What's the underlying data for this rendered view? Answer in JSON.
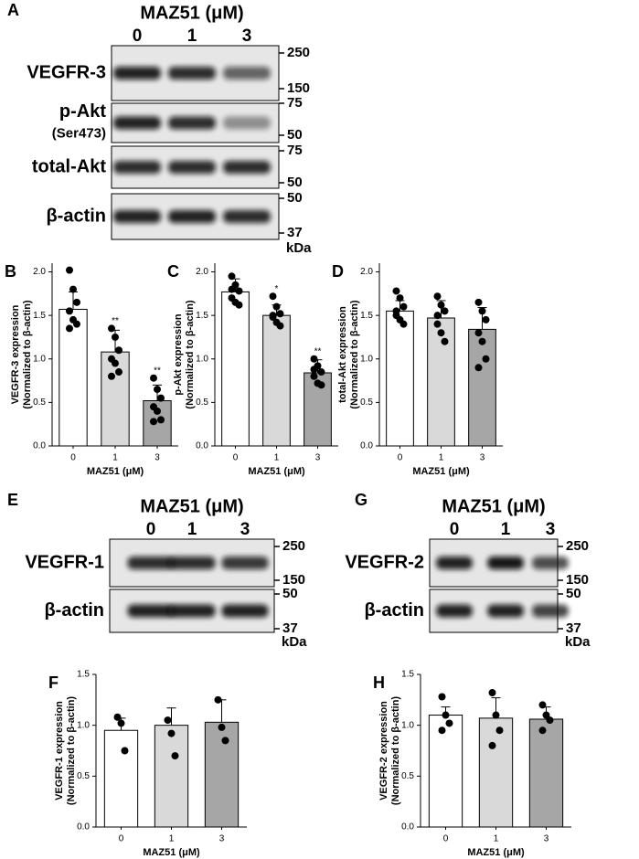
{
  "blots": [
    {
      "panel": "A",
      "title": "MAZ51 (μM)",
      "lanes": [
        "0",
        "1",
        "3"
      ],
      "unit": "kDa",
      "rows": [
        {
          "label": [
            "VEGFR-3"
          ],
          "markers": [
            "250",
            "150"
          ]
        },
        {
          "label": [
            "p-Akt",
            "(Ser473)"
          ],
          "markers": [
            "75",
            "50"
          ]
        },
        {
          "label": [
            "total-Akt"
          ],
          "markers": [
            "75",
            "50"
          ]
        },
        {
          "label": [
            "β-actin"
          ],
          "markers": [
            "50",
            "37"
          ]
        }
      ]
    },
    {
      "panel": "E",
      "title": "MAZ51 (μM)",
      "lanes": [
        "0",
        "1",
        "3"
      ],
      "unit": "kDa",
      "rows": [
        {
          "label": [
            "VEGFR-1"
          ],
          "markers": [
            "250",
            "150"
          ]
        },
        {
          "label": [
            "β-actin"
          ],
          "markers": [
            "50",
            "37"
          ]
        }
      ]
    },
    {
      "panel": "G",
      "title": "MAZ51 (μM)",
      "lanes": [
        "0",
        "1",
        "3"
      ],
      "unit": "kDa",
      "rows": [
        {
          "label": [
            "VEGFR-2"
          ],
          "markers": [
            "250",
            "150"
          ]
        },
        {
          "label": [
            "β-actin"
          ],
          "markers": [
            "50",
            "37"
          ]
        }
      ]
    }
  ],
  "chart_data": [
    {
      "type": "bar",
      "panel": "B",
      "ylabel": [
        "VEGFR-3 expression",
        "(Normalized to β-actin)"
      ],
      "xlabel": "MAZ51 (μM)",
      "categories": [
        "0",
        "1",
        "3"
      ],
      "values": [
        1.57,
        1.08,
        0.52
      ],
      "errors": [
        0.2,
        0.25,
        0.18
      ],
      "annotations": [
        null,
        "**",
        "**"
      ],
      "colors": [
        "#ffffff",
        "#d9d9d9",
        "#a6a6a6"
      ],
      "points": [
        [
          2.02,
          1.8,
          1.65,
          1.55,
          1.45,
          1.4,
          1.35
        ],
        [
          1.35,
          1.25,
          1.1,
          1.0,
          0.95,
          0.85,
          0.8
        ],
        [
          0.78,
          0.65,
          0.55,
          0.45,
          0.4,
          0.3,
          0.28
        ]
      ],
      "ylim": [
        0,
        2.1
      ],
      "yticks": [
        {
          "value": 0,
          "label": "0.0"
        },
        {
          "value": 0.5,
          "label": "0.5"
        },
        {
          "value": 1,
          "label": "1.0"
        },
        {
          "value": 1.5,
          "label": "1.5"
        },
        {
          "value": 2,
          "label": "2.0"
        }
      ]
    },
    {
      "type": "bar",
      "panel": "C",
      "ylabel": [
        "p-Akt expression",
        "(Normalized to β-actin)"
      ],
      "xlabel": "MAZ51 (μM)",
      "categories": [
        "0",
        "1",
        "3"
      ],
      "values": [
        1.77,
        1.5,
        0.84
      ],
      "errors": [
        0.15,
        0.12,
        0.15
      ],
      "annotations": [
        null,
        "*",
        "**"
      ],
      "colors": [
        "#ffffff",
        "#d9d9d9",
        "#a6a6a6"
      ],
      "points": [
        [
          1.95,
          1.85,
          1.78,
          1.7,
          1.65,
          1.62,
          1.8
        ],
        [
          1.72,
          1.6,
          1.52,
          1.48,
          1.42,
          1.38,
          1.5
        ],
        [
          1.0,
          0.92,
          0.85,
          0.8,
          0.72,
          0.7,
          0.88
        ]
      ],
      "ylim": [
        0,
        2.1
      ],
      "yticks": [
        {
          "value": 0,
          "label": "0.0"
        },
        {
          "value": 0.5,
          "label": "0.5"
        },
        {
          "value": 1,
          "label": "1.0"
        },
        {
          "value": 1.5,
          "label": "1.5"
        },
        {
          "value": 2,
          "label": "2.0"
        }
      ]
    },
    {
      "type": "bar",
      "panel": "D",
      "ylabel": [
        "total-Akt expression",
        "(Normalized to β-actin)"
      ],
      "xlabel": "MAZ51 (μM)",
      "categories": [
        "0",
        "1",
        "3"
      ],
      "values": [
        1.55,
        1.47,
        1.34
      ],
      "errors": [
        0.12,
        0.2,
        0.25
      ],
      "annotations": [
        null,
        null,
        null
      ],
      "colors": [
        "#ffffff",
        "#d9d9d9",
        "#a6a6a6"
      ],
      "points": [
        [
          1.78,
          1.7,
          1.6,
          1.55,
          1.45,
          1.4,
          1.5
        ],
        [
          1.72,
          1.62,
          1.55,
          1.4,
          1.3,
          1.2,
          1.5
        ],
        [
          1.65,
          1.55,
          1.45,
          1.3,
          1.2,
          1.0,
          0.9
        ]
      ],
      "ylim": [
        0,
        2.1
      ],
      "yticks": [
        {
          "value": 0,
          "label": "0.0"
        },
        {
          "value": 0.5,
          "label": "0.5"
        },
        {
          "value": 1,
          "label": "1.0"
        },
        {
          "value": 1.5,
          "label": "1.5"
        },
        {
          "value": 2,
          "label": "2.0"
        }
      ]
    },
    {
      "type": "bar",
      "panel": "F",
      "ylabel": [
        "VEGFR-1 expression",
        "(Normalized to β-actin)"
      ],
      "xlabel": "MAZ51 (μM)",
      "categories": [
        "0",
        "1",
        "3"
      ],
      "values": [
        0.95,
        1.0,
        1.03
      ],
      "errors": [
        0.12,
        0.17,
        0.22
      ],
      "annotations": [
        null,
        null,
        null
      ],
      "colors": [
        "#ffffff",
        "#d9d9d9",
        "#a6a6a6"
      ],
      "points": [
        [
          1.08,
          1.02,
          0.75
        ],
        [
          1.05,
          0.92,
          0.7
        ],
        [
          1.25,
          0.98,
          0.85
        ]
      ],
      "ylim": [
        0,
        1.5
      ],
      "yticks": [
        {
          "value": 0,
          "label": "0.0"
        },
        {
          "value": 0.5,
          "label": "0.5"
        },
        {
          "value": 1,
          "label": "1.0"
        },
        {
          "value": 1.5,
          "label": "1.5"
        }
      ]
    },
    {
      "type": "bar",
      "panel": "H",
      "ylabel": [
        "VEGFR-2 expression",
        "(Normalized to β-actin)"
      ],
      "xlabel": "MAZ51 (μM)",
      "categories": [
        "0",
        "1",
        "3"
      ],
      "values": [
        1.1,
        1.07,
        1.06
      ],
      "errors": [
        0.08,
        0.2,
        0.12
      ],
      "annotations": [
        null,
        null,
        null
      ],
      "colors": [
        "#ffffff",
        "#d9d9d9",
        "#a6a6a6"
      ],
      "points": [
        [
          1.28,
          1.1,
          1.02,
          0.95
        ],
        [
          1.32,
          1.1,
          0.95,
          0.8
        ],
        [
          1.2,
          1.1,
          1.05,
          0.95
        ]
      ],
      "ylim": [
        0,
        1.5
      ],
      "yticks": [
        {
          "value": 0,
          "label": "0.0"
        },
        {
          "value": 0.5,
          "label": "0.5"
        },
        {
          "value": 1,
          "label": "1.0"
        },
        {
          "value": 1.5,
          "label": "1.5"
        }
      ]
    }
  ]
}
